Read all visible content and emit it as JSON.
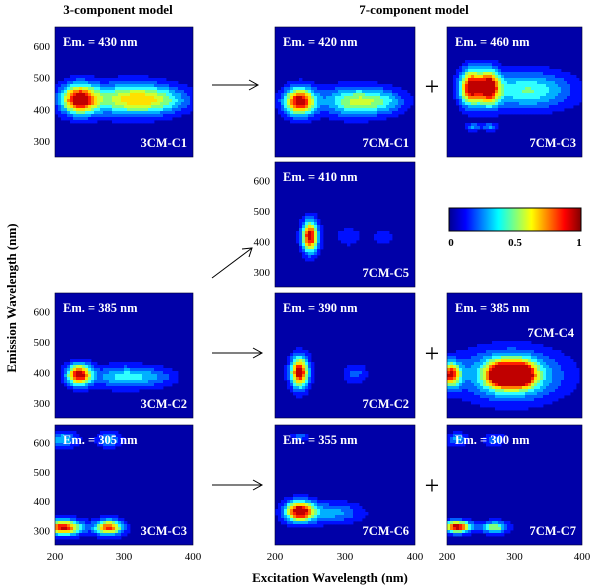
{
  "chart_data": {
    "type": "heatmap",
    "headers": {
      "left": "3-component model",
      "right": "7-component model"
    },
    "xlabel": "Excitation Wavelength (nm)",
    "ylabel": "Emission Wavelength (nm)",
    "xlim": [
      200,
      400
    ],
    "ylim": [
      250,
      660
    ],
    "x_ticks": [
      "200",
      "300",
      "400"
    ],
    "y_ticks": [
      "300",
      "400",
      "500",
      "600"
    ],
    "colorbar": {
      "ticks": [
        "0",
        "0.5",
        "1"
      ],
      "range": [
        0,
        1
      ]
    },
    "panels": [
      {
        "id": "3CM-C1",
        "label": "3CM-C1",
        "em_label": "Em. = 430 nm",
        "peaks": [
          {
            "ex": 235,
            "em": 432,
            "sx": 18,
            "sy": 32,
            "a": 1.0
          },
          {
            "ex": 310,
            "em": 432,
            "sx": 38,
            "sy": 35,
            "a": 0.65
          },
          {
            "ex": 360,
            "em": 430,
            "sx": 28,
            "sy": 28,
            "a": 0.25
          }
        ]
      },
      {
        "id": "7CM-C1",
        "label": "7CM-C1",
        "em_label": "Em. = 420 nm",
        "peaks": [
          {
            "ex": 235,
            "em": 425,
            "sx": 15,
            "sy": 30,
            "a": 1.0
          },
          {
            "ex": 315,
            "em": 425,
            "sx": 32,
            "sy": 32,
            "a": 0.55
          },
          {
            "ex": 360,
            "em": 425,
            "sx": 22,
            "sy": 25,
            "a": 0.2
          }
        ]
      },
      {
        "id": "7CM-C3",
        "label": "7CM-C3",
        "em_label": "Em. = 460 nm",
        "peaks": [
          {
            "ex": 235,
            "em": 470,
            "sx": 11,
            "sy": 38,
            "a": 0.95
          },
          {
            "ex": 262,
            "em": 470,
            "sx": 11,
            "sy": 38,
            "a": 0.95
          },
          {
            "ex": 320,
            "em": 460,
            "sx": 45,
            "sy": 40,
            "a": 0.45
          },
          {
            "ex": 238,
            "em": 345,
            "sx": 8,
            "sy": 8,
            "a": 0.28
          },
          {
            "ex": 264,
            "em": 345,
            "sx": 8,
            "sy": 8,
            "a": 0.28
          }
        ]
      },
      {
        "id": "7CM-C5",
        "label": "7CM-C5",
        "em_label": "Em. = 410 nm",
        "peaks": [
          {
            "ex": 250,
            "em": 415,
            "sx": 8,
            "sy": 35,
            "a": 1.0
          },
          {
            "ex": 305,
            "em": 415,
            "sx": 15,
            "sy": 25,
            "a": 0.12
          },
          {
            "ex": 355,
            "em": 415,
            "sx": 12,
            "sy": 22,
            "a": 0.12
          }
        ]
      },
      {
        "id": "3CM-C2",
        "label": "3CM-C2",
        "em_label": "Em. = 385 nm",
        "peaks": [
          {
            "ex": 235,
            "em": 392,
            "sx": 12,
            "sy": 24,
            "a": 1.0
          },
          {
            "ex": 300,
            "em": 385,
            "sx": 30,
            "sy": 25,
            "a": 0.4
          },
          {
            "ex": 350,
            "em": 385,
            "sx": 22,
            "sy": 22,
            "a": 0.15
          }
        ]
      },
      {
        "id": "7CM-C2",
        "label": "7CM-C2",
        "em_label": "Em. = 390 nm",
        "peaks": [
          {
            "ex": 235,
            "em": 400,
            "sx": 9,
            "sy": 35,
            "a": 1.0
          },
          {
            "ex": 315,
            "em": 395,
            "sx": 12,
            "sy": 22,
            "a": 0.2
          }
        ]
      },
      {
        "id": "7CM-C4",
        "label": "7CM-C4",
        "em_label": "Em. = 385 nm",
        "peaks": [
          {
            "ex": 280,
            "em": 393,
            "sx": 14,
            "sy": 28,
            "a": 0.95
          },
          {
            "ex": 310,
            "em": 393,
            "sx": 14,
            "sy": 28,
            "a": 0.95
          },
          {
            "ex": 295,
            "em": 390,
            "sx": 50,
            "sy": 55,
            "a": 0.55
          },
          {
            "ex": 205,
            "em": 393,
            "sx": 10,
            "sy": 28,
            "a": 0.85
          }
        ]
      },
      {
        "id": "3CM-C3",
        "label": "3CM-C3",
        "em_label": "Em. = 305 nm",
        "peaks": [
          {
            "ex": 212,
            "em": 310,
            "sx": 18,
            "sy": 18,
            "a": 0.95
          },
          {
            "ex": 278,
            "em": 310,
            "sx": 14,
            "sy": 18,
            "a": 0.85
          },
          {
            "ex": 212,
            "em": 610,
            "sx": 14,
            "sy": 18,
            "a": 0.35
          },
          {
            "ex": 278,
            "em": 610,
            "sx": 12,
            "sy": 18,
            "a": 0.3
          }
        ]
      },
      {
        "id": "7CM-C6",
        "label": "7CM-C6",
        "em_label": "Em. = 355 nm",
        "peaks": [
          {
            "ex": 235,
            "em": 365,
            "sx": 14,
            "sy": 24,
            "a": 1.0
          },
          {
            "ex": 280,
            "em": 360,
            "sx": 30,
            "sy": 25,
            "a": 0.3
          },
          {
            "ex": 235,
            "em": 620,
            "sx": 8,
            "sy": 8,
            "a": 0.25
          }
        ]
      },
      {
        "id": "7CM-C7",
        "label": "7CM-C7",
        "em_label": "Em. = 300 nm",
        "peaks": [
          {
            "ex": 215,
            "em": 312,
            "sx": 14,
            "sy": 14,
            "a": 1.0
          },
          {
            "ex": 270,
            "em": 310,
            "sx": 13,
            "sy": 14,
            "a": 0.55
          },
          {
            "ex": 215,
            "em": 610,
            "sx": 10,
            "sy": 15,
            "a": 0.3
          },
          {
            "ex": 270,
            "em": 610,
            "sx": 10,
            "sy": 15,
            "a": 0.25
          }
        ]
      }
    ],
    "operators": {
      "plus": "+"
    }
  }
}
